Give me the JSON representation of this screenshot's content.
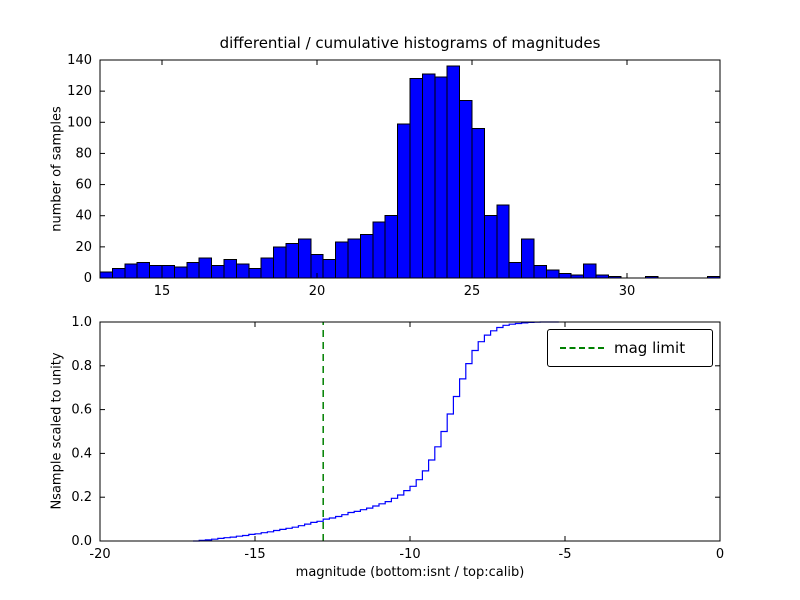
{
  "figure": {
    "background": "#ffffff"
  },
  "chart_data": [
    {
      "type": "bar",
      "subplot": "top",
      "title": "differential / cumulative histograms of magnitudes",
      "ylabel": "number of samples",
      "xlim": [
        13,
        33
      ],
      "ylim": [
        0,
        140
      ],
      "bin_start": 13.0,
      "bin_width": 0.4,
      "bar_color": "#0000ff",
      "bar_edge": "#000000",
      "values": [
        4,
        6,
        9,
        10,
        8,
        8,
        7,
        10,
        13,
        8,
        12,
        9,
        6,
        13,
        20,
        22,
        25,
        15,
        12,
        23,
        25,
        28,
        36,
        40,
        99,
        128,
        131,
        129,
        136,
        114,
        96,
        40,
        47,
        10,
        25,
        8,
        5,
        3,
        2,
        9,
        2,
        1,
        0,
        0,
        1,
        0,
        0,
        0,
        0,
        1
      ],
      "xticks": [
        15,
        20,
        25,
        30
      ],
      "xtick_labels": [
        "15",
        "20",
        "25",
        "30"
      ],
      "yticks": [
        0,
        20,
        40,
        60,
        80,
        100,
        120,
        140
      ],
      "ytick_labels": [
        "0",
        "20",
        "40",
        "60",
        "80",
        "100",
        "120",
        "140"
      ]
    },
    {
      "type": "line",
      "subplot": "bottom",
      "style": "step-cumulative",
      "ylabel": "Nsample scaled to unity",
      "xlabel": "magnitude (bottom:isnt / top:calib)",
      "xlim": [
        -20,
        0
      ],
      "ylim": [
        0.0,
        1.0
      ],
      "line_color": "#0000ff",
      "x": [
        -17.0,
        -16.8,
        -16.6,
        -16.4,
        -16.2,
        -16.0,
        -15.8,
        -15.6,
        -15.4,
        -15.2,
        -15.0,
        -14.8,
        -14.6,
        -14.4,
        -14.2,
        -14.0,
        -13.8,
        -13.6,
        -13.4,
        -13.2,
        -13.0,
        -12.8,
        -12.6,
        -12.4,
        -12.2,
        -12.0,
        -11.8,
        -11.6,
        -11.4,
        -11.2,
        -11.0,
        -10.8,
        -10.6,
        -10.4,
        -10.2,
        -10.0,
        -9.8,
        -9.6,
        -9.4,
        -9.2,
        -9.0,
        -8.8,
        -8.6,
        -8.4,
        -8.2,
        -8.0,
        -7.8,
        -7.6,
        -7.4,
        -7.2,
        -7.0,
        -6.8,
        -6.6,
        -6.4,
        -6.2,
        -6.0,
        -5.8,
        -5.6,
        -5.4,
        -5.2
      ],
      "y": [
        0.0,
        0.003,
        0.005,
        0.008,
        0.012,
        0.015,
        0.018,
        0.022,
        0.025,
        0.03,
        0.033,
        0.038,
        0.042,
        0.048,
        0.053,
        0.058,
        0.063,
        0.07,
        0.077,
        0.085,
        0.09,
        0.1,
        0.105,
        0.112,
        0.12,
        0.13,
        0.135,
        0.143,
        0.15,
        0.16,
        0.17,
        0.18,
        0.195,
        0.21,
        0.23,
        0.25,
        0.28,
        0.32,
        0.37,
        0.43,
        0.5,
        0.58,
        0.66,
        0.74,
        0.81,
        0.87,
        0.91,
        0.94,
        0.96,
        0.975,
        0.985,
        0.99,
        0.993,
        0.996,
        0.998,
        0.999,
        1.0,
        1.0,
        1.0,
        1.0
      ],
      "xticks": [
        -20,
        -15,
        -10,
        -5,
        0
      ],
      "xtick_labels": [
        "-20",
        "-15",
        "-10",
        "-5",
        "0"
      ],
      "yticks": [
        0.0,
        0.2,
        0.4,
        0.6,
        0.8,
        1.0
      ],
      "ytick_labels": [
        "0.0",
        "0.2",
        "0.4",
        "0.6",
        "0.8",
        "1.0"
      ],
      "vline": {
        "x": -12.8,
        "color": "#008000",
        "style": "dashed",
        "label": "mag limit"
      },
      "legend": {
        "label": "mag limit",
        "position": "upper right"
      }
    }
  ]
}
